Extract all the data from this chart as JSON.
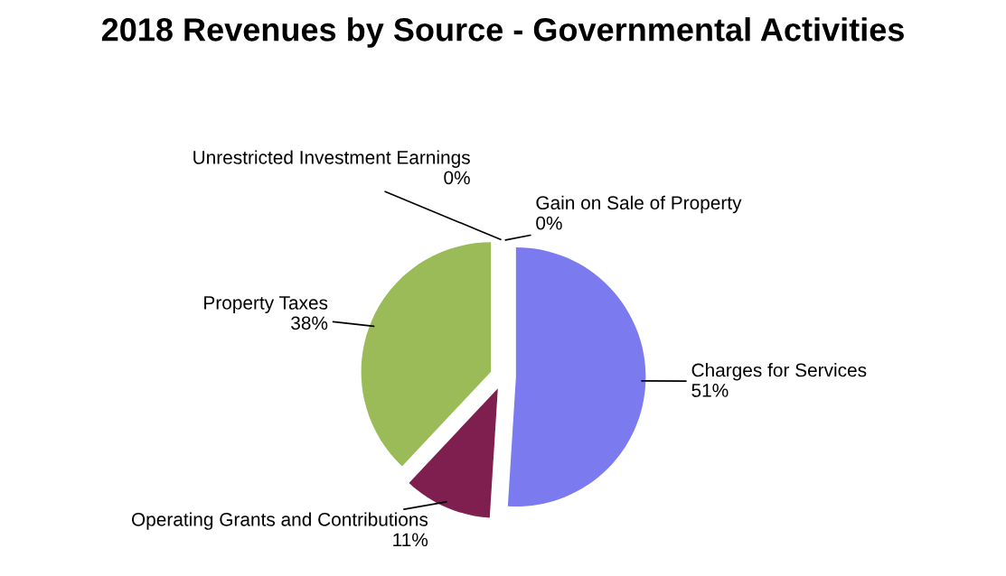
{
  "chart_data": {
    "type": "pie",
    "title": "2018 Revenues by Source - Governmental Activities",
    "categories": [
      "Charges for Services",
      "Operating Grants and Contributions",
      "Property Taxes",
      "Unrestricted Investment Earnings",
      "Gain on Sale of Property"
    ],
    "values": [
      51,
      11,
      38,
      0,
      0
    ],
    "colors": [
      "#7b7bef",
      "#7f1f4f",
      "#9bbb59",
      "#6a6a80",
      "#4a4a60"
    ],
    "value_labels": [
      "51%",
      "11%",
      "38%",
      "0%",
      "0%"
    ],
    "legend": false
  }
}
